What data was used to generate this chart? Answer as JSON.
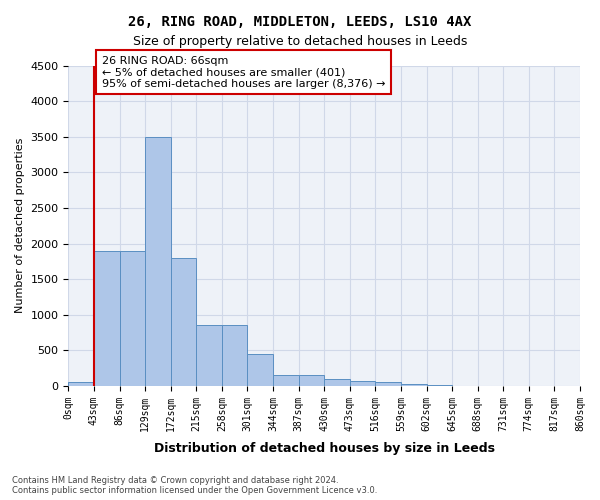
{
  "title": "26, RING ROAD, MIDDLETON, LEEDS, LS10 4AX",
  "subtitle": "Size of property relative to detached houses in Leeds",
  "xlabel": "Distribution of detached houses by size in Leeds",
  "ylabel": "Number of detached properties",
  "bar_values": [
    50,
    1900,
    1900,
    3500,
    1800,
    850,
    850,
    450,
    150,
    150,
    100,
    75,
    50,
    30,
    10,
    5,
    3,
    2,
    1,
    1
  ],
  "bin_labels": [
    "0sqm",
    "43sqm",
    "86sqm",
    "129sqm",
    "172sqm",
    "215sqm",
    "258sqm",
    "301sqm",
    "344sqm",
    "387sqm",
    "430sqm",
    "473sqm",
    "516sqm",
    "559sqm",
    "602sqm",
    "645sqm",
    "688sqm",
    "731sqm",
    "774sqm",
    "817sqm",
    "860sqm"
  ],
  "bar_color": "#aec6e8",
  "bar_edge_color": "#5a8fc2",
  "red_line_x": 1,
  "annotation_text": "26 RING ROAD: 66sqm\n← 5% of detached houses are smaller (401)\n95% of semi-detached houses are larger (8,376) →",
  "annotation_box_color": "#ffffff",
  "annotation_box_edge": "#cc0000",
  "red_line_color": "#cc0000",
  "ylim": [
    0,
    4500
  ],
  "yticks": [
    0,
    500,
    1000,
    1500,
    2000,
    2500,
    3000,
    3500,
    4000,
    4500
  ],
  "grid_color": "#d0d8e8",
  "background_color": "#eef2f8",
  "footer": "Contains HM Land Registry data © Crown copyright and database right 2024.\nContains public sector information licensed under the Open Government Licence v3.0."
}
